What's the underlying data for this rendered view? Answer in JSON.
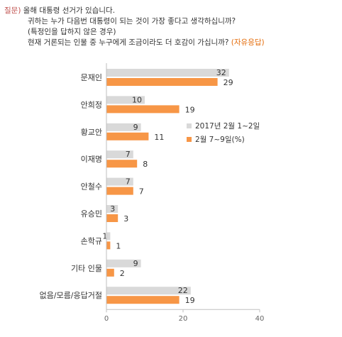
{
  "question": {
    "prefix": "질문)",
    "lines": [
      "올해 대통령 선거가 있습니다.",
      "귀하는 누가 다음번 대통령이 되는 것이 가장 좋다고 생각하십니까?",
      "(특정인을 답하지 않은 경우)",
      "현재 거론되는 인물 중 누구에게 조금이라도 더 호감이 가십니까?"
    ],
    "note": "(자유응답)"
  },
  "colors": {
    "series1": "#d9d9d9",
    "series2": "#f79646",
    "axis": "#bfbfbf",
    "text": "#333333"
  },
  "chart_data": {
    "type": "bar",
    "orientation": "horizontal",
    "categories": [
      "문재인",
      "안희정",
      "황교안",
      "이재명",
      "안철수",
      "유승민",
      "손학규",
      "기타 인물",
      "없음/모름/응답거절"
    ],
    "series": [
      {
        "name": "2017년 2월 1~2일",
        "values": [
          32,
          10,
          9,
          7,
          7,
          3,
          1,
          9,
          22
        ]
      },
      {
        "name": "2월 7~9일(%)",
        "values": [
          29,
          19,
          11,
          8,
          7,
          3,
          1,
          2,
          19
        ]
      }
    ],
    "xlim": [
      0,
      40
    ],
    "xticks": [
      0,
      20,
      40
    ],
    "legend_position": "right",
    "grid": false
  }
}
